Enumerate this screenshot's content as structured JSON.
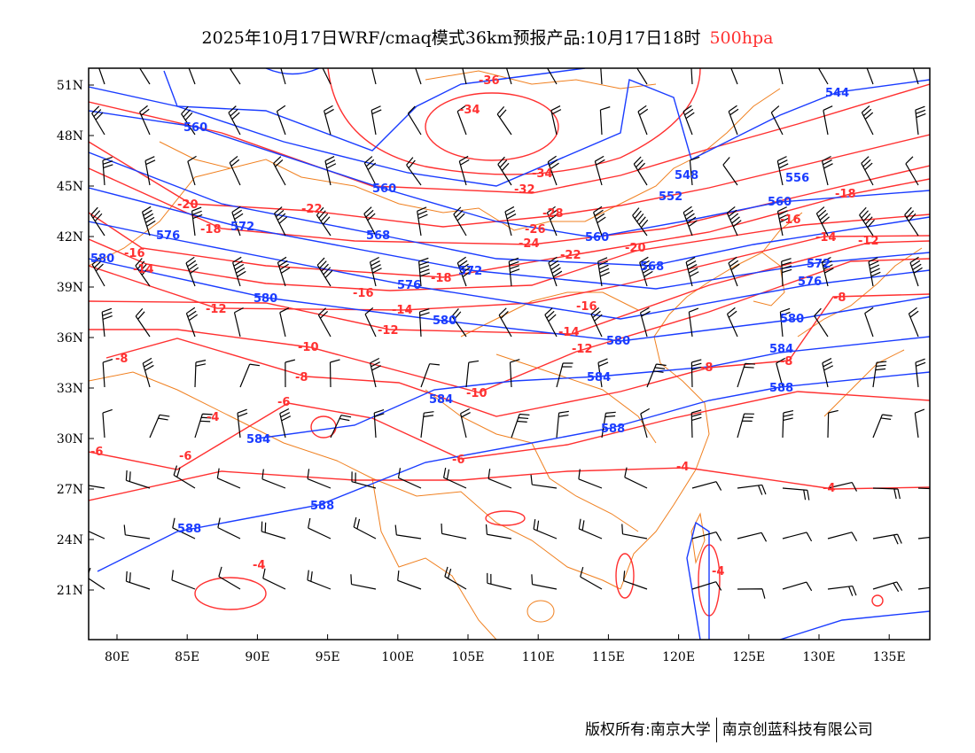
{
  "title": {
    "text": "2025年10月17日WRF/cmaq模式36km预报产品:10月17日18时",
    "level": "500hpa"
  },
  "footer": {
    "left": "版权所有:南京大学",
    "right": "南京创蓝科技有限公司"
  },
  "colors": {
    "temperature": "#ff3030",
    "height": "#1a3cff",
    "borders": "#f08020",
    "wind": "#000000"
  },
  "axes": {
    "lat_ticks": [
      "51N",
      "48N",
      "45N",
      "42N",
      "39N",
      "36N",
      "33N",
      "30N",
      "27N",
      "24N",
      "21N"
    ],
    "lon_ticks": [
      "80E",
      "85E",
      "90E",
      "95E",
      "100E",
      "105E",
      "110E",
      "115E",
      "120E",
      "125E",
      "130E",
      "135E"
    ]
  },
  "temp_labels": [
    "-36",
    "-34",
    "-34",
    "-32",
    "-28",
    "-26",
    "-24",
    "-22",
    "-22",
    "-20",
    "-20",
    "-18",
    "-18",
    "-18",
    "-16",
    "-16",
    "-16",
    "-14",
    "-14",
    "-14",
    "-14",
    "-12",
    "-12",
    "-12",
    "-10",
    "-10",
    "-8",
    "-8",
    "-8",
    "-8",
    "-8",
    "-6",
    "-6",
    "-6",
    "-6",
    "-4",
    "-4",
    "-4",
    "-4",
    "-4",
    "-12",
    "-16"
  ],
  "height_labels": [
    "560",
    "560",
    "560",
    "560",
    "568",
    "568",
    "572",
    "572",
    "572",
    "576",
    "576",
    "576",
    "580",
    "580",
    "580",
    "580",
    "584",
    "584",
    "584",
    "584",
    "588",
    "588",
    "588",
    "588",
    "552",
    "548",
    "544",
    "556",
    "580"
  ]
}
